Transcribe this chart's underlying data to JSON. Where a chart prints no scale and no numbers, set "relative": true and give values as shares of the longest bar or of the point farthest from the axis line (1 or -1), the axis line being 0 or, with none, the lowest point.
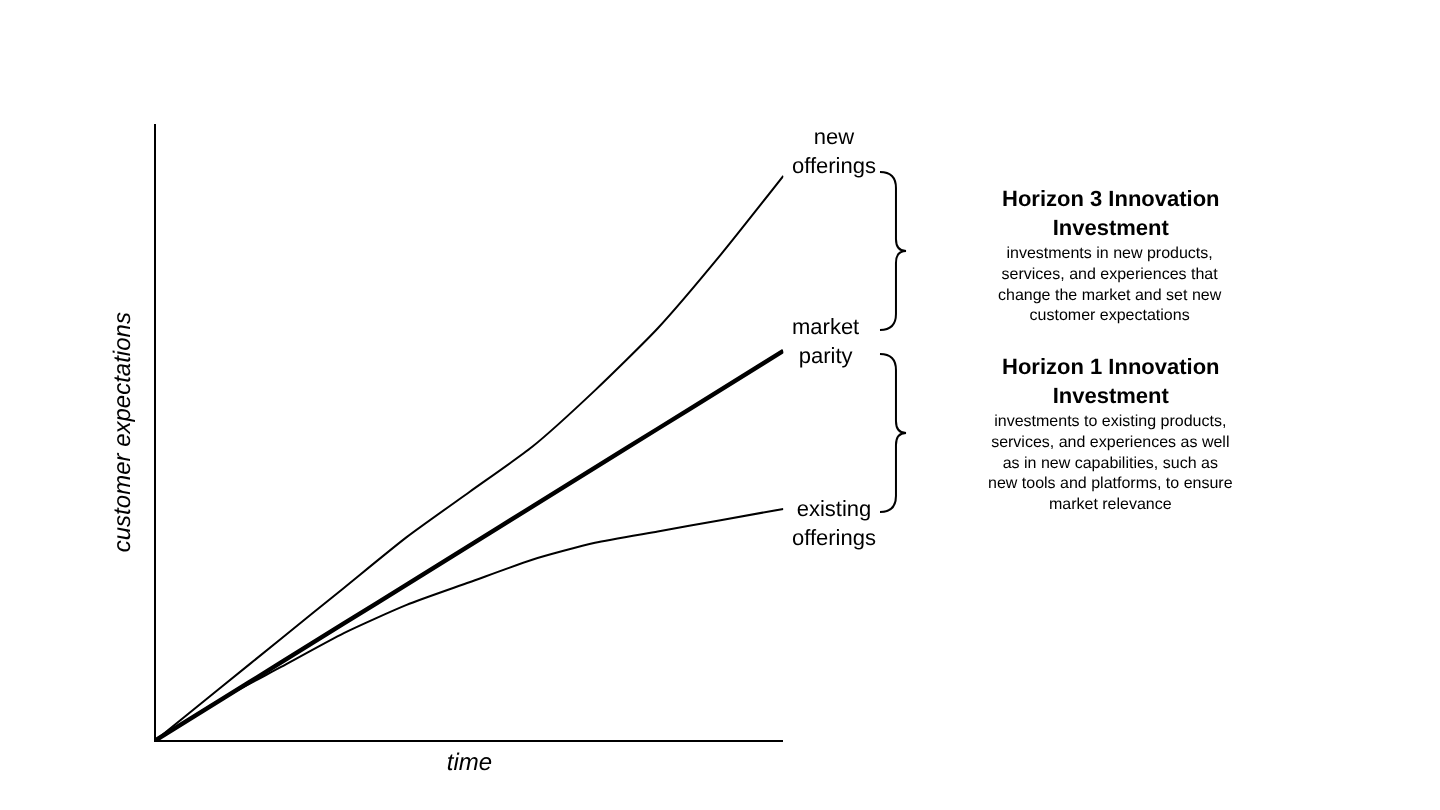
{
  "chart_data": {
    "type": "line",
    "relative": true,
    "xlabel": "time",
    "ylabel": "customer expectations",
    "categories": [
      null,
      null,
      null,
      null,
      null,
      null,
      null,
      null,
      null,
      null,
      null
    ],
    "series": [
      {
        "name": "new offerings",
        "color": "#000000",
        "values": [
          0,
          0.09,
          0.18,
          0.27,
          0.36,
          0.44,
          0.52,
          0.62,
          0.73,
          0.86,
          1.0
        ]
      },
      {
        "name": "market parity",
        "color": "#000000",
        "values": [
          0,
          0.069,
          0.138,
          0.207,
          0.276,
          0.345,
          0.414,
          0.483,
          0.552,
          0.621,
          0.69
        ]
      },
      {
        "name": "existing offerings",
        "color": "#000000",
        "values": [
          0,
          0.07,
          0.13,
          0.19,
          0.24,
          0.28,
          0.32,
          0.35,
          0.37,
          0.39,
          0.41
        ]
      }
    ],
    "annotations": [
      "Horizon 3 Innovation Investment",
      "investments in new products, services, and experiences that change the market and set new customer expectations",
      "Horizon 1 Innovation Investment",
      "investments to existing products, services, and experiences as well as in new capabilities, such as new tools and platforms, to ensure market relevance"
    ],
    "legend": false,
    "grid": false,
    "marker": "none",
    "line_style": "solid"
  }
}
